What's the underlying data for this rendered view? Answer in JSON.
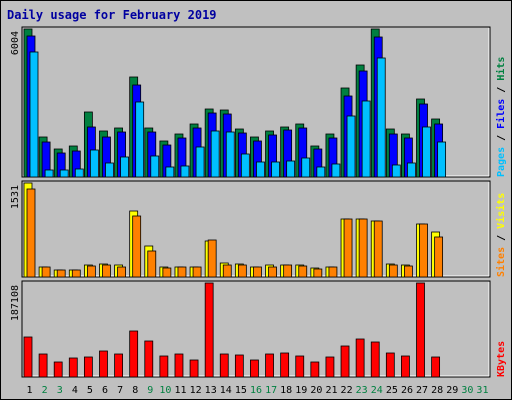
{
  "chart_data": {
    "type": "bar",
    "title": "Daily usage for February 2019",
    "categories": [
      "1",
      "2",
      "3",
      "4",
      "5",
      "6",
      "7",
      "8",
      "9",
      "10",
      "11",
      "12",
      "13",
      "14",
      "15",
      "16",
      "17",
      "18",
      "19",
      "20",
      "21",
      "22",
      "23",
      "24",
      "25",
      "26",
      "27",
      "28",
      "29",
      "30",
      "31"
    ],
    "weekend_days": [
      2,
      3,
      9,
      10,
      16,
      17,
      23,
      24,
      30,
      31
    ],
    "future_days": [
      29,
      30,
      31
    ],
    "colors": {
      "hits": "#008040",
      "files": "#0000ff",
      "pages": "#00c0ff",
      "visits": "#ffff00",
      "sites": "#ff8000",
      "kbytes": "#ff0000",
      "weekday_label": "#000000",
      "weekend_label": "#008040",
      "title": "#0000a0",
      "background": "#c0c0c0",
      "plot_background": "#c0c0c0"
    },
    "panels": [
      {
        "name": "hits_files_pages",
        "ymax_label": "6004",
        "ymax": 6004,
        "legend": [
          {
            "text": "Pages",
            "color": "#00c0ff"
          },
          {
            "text": " / ",
            "color": "#000000"
          },
          {
            "text": "Files",
            "color": "#0000ff"
          },
          {
            "text": " / ",
            "color": "#000000"
          },
          {
            "text": "Hits",
            "color": "#008040"
          }
        ],
        "series": [
          {
            "name": "Hits",
            "color": "#008040",
            "values": [
              6004,
              1610,
              1140,
              1260,
              2620,
              1870,
              1980,
              4040,
              1980,
              1450,
              1760,
              2130,
              2750,
              2710,
              1960,
              1640,
              1860,
              2040,
              2130,
              1270,
              1740,
              3610,
              4560,
              6004,
              1960,
              1740,
              3160,
              2350,
              0,
              0,
              0
            ]
          },
          {
            "name": "Files",
            "color": "#0000ff",
            "values": [
              5720,
              1420,
              960,
              1070,
              2020,
              1620,
              1810,
              3730,
              1810,
              1280,
              1600,
              1970,
              2580,
              2540,
              1800,
              1480,
              1700,
              1900,
              1990,
              1130,
              1580,
              3280,
              4310,
              5690,
              1750,
              1570,
              2950,
              2160,
              0,
              0,
              0
            ]
          },
          {
            "name": "Pages",
            "color": "#00c0ff",
            "values": [
              5090,
              290,
              270,
              320,
              1110,
              580,
              830,
              3060,
              850,
              420,
              430,
              1200,
              1880,
              1810,
              920,
              590,
              610,
              660,
              760,
              400,
              530,
              2460,
              3070,
              4820,
              490,
              560,
              2040,
              1430,
              0,
              0,
              0
            ]
          }
        ]
      },
      {
        "name": "visits_sites",
        "ymax_label": "1531",
        "ymax": 1531,
        "legend": [
          {
            "text": "Sites",
            "color": "#ff8000"
          },
          {
            "text": " / ",
            "color": "#000000"
          },
          {
            "text": "Visits",
            "color": "#ffff00"
          }
        ],
        "series": [
          {
            "name": "Visits",
            "color": "#ffff00",
            "values": [
              1531,
              170,
              120,
              120,
              190,
              210,
              190,
              1070,
              500,
              170,
              170,
              170,
              580,
              220,
              210,
              170,
              190,
              200,
              190,
              150,
              170,
              940,
              950,
              920,
              210,
              190,
              870,
              740,
              0,
              0,
              0
            ]
          },
          {
            "name": "Sites",
            "color": "#ff8000",
            "values": [
              1430,
              160,
              110,
              120,
              180,
              200,
              170,
              990,
              430,
              150,
              160,
              160,
              600,
              200,
              190,
              160,
              170,
              190,
              180,
              130,
              160,
              940,
              940,
              910,
              190,
              180,
              870,
              650,
              0,
              0,
              0
            ]
          }
        ]
      },
      {
        "name": "kbytes",
        "ymax_label": "187108",
        "ymax": 187108,
        "legend": [
          {
            "text": "KBytes",
            "color": "#ff0000"
          }
        ],
        "series": [
          {
            "name": "KBytes",
            "color": "#ff0000",
            "values": [
              80000,
              45000,
              30000,
              37000,
              40000,
              51000,
              46000,
              91000,
              71000,
              42000,
              46000,
              33000,
              187108,
              46000,
              43000,
              33000,
              45000,
              47000,
              42000,
              30000,
              40000,
              62000,
              75000,
              69000,
              47000,
              42000,
              187108,
              40000,
              0,
              0,
              0
            ]
          }
        ]
      }
    ]
  }
}
